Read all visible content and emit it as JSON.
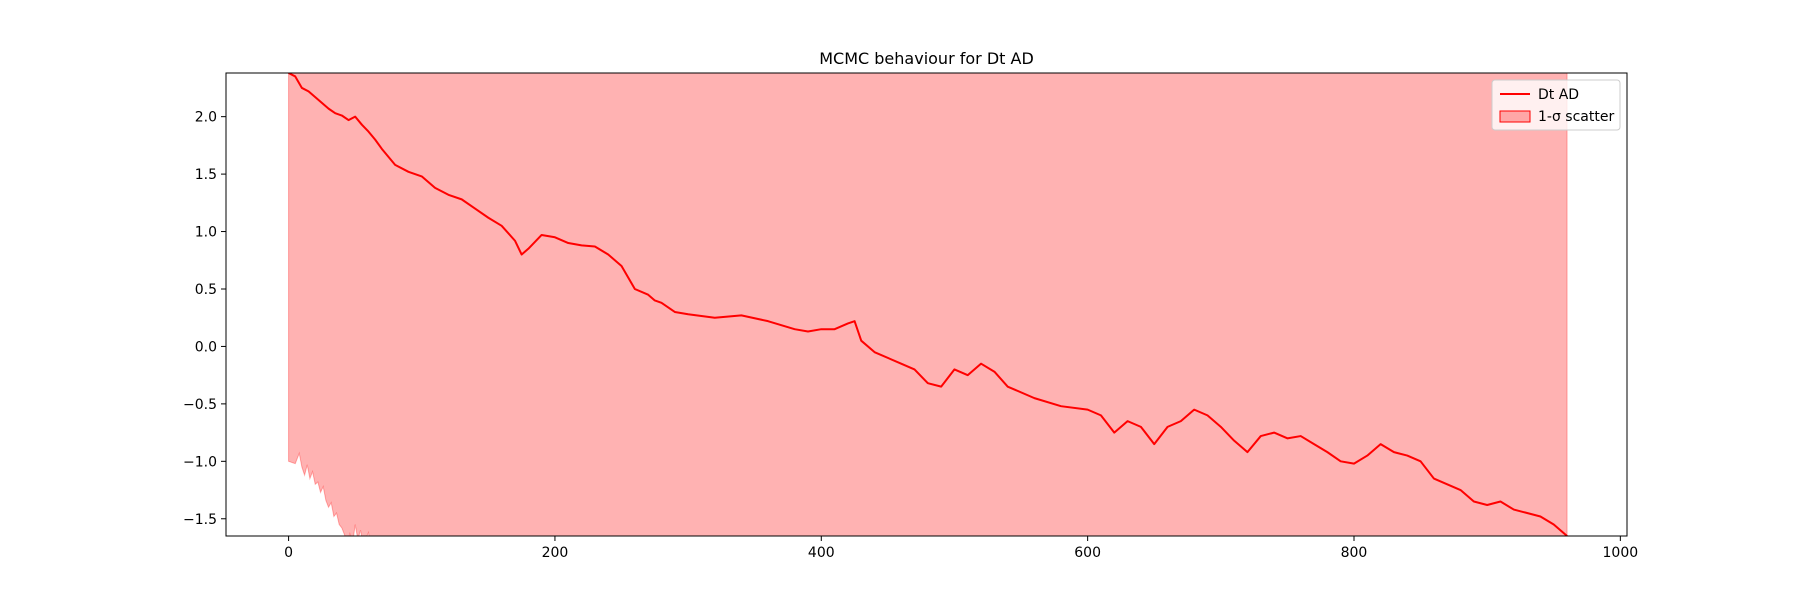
{
  "chart_data": {
    "type": "area",
    "title": "MCMC behaviour for Dt AD",
    "xlabel": "",
    "ylabel": "",
    "xlim": [
      -47,
      1005
    ],
    "ylim": [
      -1.65,
      2.38
    ],
    "x_ticks": [
      0,
      200,
      400,
      600,
      800,
      1000
    ],
    "x_tick_labels": [
      "0",
      "200",
      "400",
      "600",
      "800",
      "1000"
    ],
    "y_ticks": [
      -1.5,
      -1.0,
      -0.5,
      0.0,
      0.5,
      1.0,
      1.5,
      2.0
    ],
    "y_tick_labels": [
      "−1.5",
      "−1.0",
      "−0.5",
      "0.0",
      "0.5",
      "1.0",
      "1.5",
      "2.0"
    ],
    "grid": false,
    "legend_position": "top-right",
    "series": [
      {
        "name": "Dt AD",
        "kind": "line",
        "color": "#ff0000",
        "x": [
          0,
          5,
          10,
          15,
          20,
          25,
          30,
          35,
          40,
          45,
          50,
          55,
          60,
          65,
          70,
          75,
          80,
          90,
          100,
          110,
          120,
          130,
          140,
          150,
          160,
          170,
          175,
          180,
          190,
          200,
          210,
          220,
          230,
          240,
          250,
          255,
          260,
          270,
          275,
          280,
          290,
          300,
          320,
          340,
          360,
          380,
          390,
          400,
          410,
          420,
          425,
          430,
          440,
          460,
          470,
          480,
          490,
          500,
          510,
          520,
          530,
          540,
          560,
          580,
          600,
          610,
          620,
          630,
          640,
          650,
          660,
          670,
          680,
          690,
          700,
          710,
          720,
          730,
          740,
          750,
          760,
          770,
          780,
          790,
          800,
          810,
          820,
          830,
          840,
          850,
          860,
          870,
          880,
          890,
          900,
          910,
          920,
          930,
          940,
          950,
          960
        ],
        "y": [
          2.38,
          2.35,
          2.25,
          2.22,
          2.17,
          2.12,
          2.07,
          2.03,
          2.01,
          1.97,
          2.0,
          1.93,
          1.87,
          1.8,
          1.72,
          1.65,
          1.58,
          1.52,
          1.48,
          1.38,
          1.32,
          1.28,
          1.2,
          1.12,
          1.05,
          0.92,
          0.8,
          0.85,
          0.97,
          0.95,
          0.9,
          0.88,
          0.87,
          0.8,
          0.7,
          0.6,
          0.5,
          0.45,
          0.4,
          0.38,
          0.3,
          0.28,
          0.25,
          0.27,
          0.22,
          0.15,
          0.13,
          0.15,
          0.15,
          0.2,
          0.22,
          0.05,
          -0.05,
          -0.15,
          -0.2,
          -0.32,
          -0.35,
          -0.2,
          -0.25,
          -0.15,
          -0.22,
          -0.35,
          -0.45,
          -0.52,
          -0.55,
          -0.6,
          -0.75,
          -0.65,
          -0.7,
          -0.85,
          -0.7,
          -0.65,
          -0.55,
          -0.6,
          -0.7,
          -0.82,
          -0.92,
          -0.78,
          -0.75,
          -0.8,
          -0.78,
          -0.85,
          -0.92,
          -1.0,
          -1.02,
          -0.95,
          -0.85,
          -0.92,
          -0.95,
          -1.0,
          -1.15,
          -1.2,
          -1.25,
          -1.35,
          -1.38,
          -1.35,
          -1.42,
          -1.45,
          -1.48,
          -1.55,
          -1.65
        ]
      },
      {
        "name": "1-σ scatter",
        "kind": "band",
        "color": "#ff0000",
        "x": [
          0,
          5,
          8,
          10,
          12,
          14,
          16,
          18,
          20,
          22,
          24,
          26,
          28,
          30,
          32,
          34,
          36,
          38,
          40,
          42,
          44,
          46,
          48,
          50,
          52,
          54,
          56,
          58,
          60,
          62,
          960
        ],
        "lower": [
          -1.0,
          -1.02,
          -0.93,
          -1.05,
          -1.12,
          -1.03,
          -1.15,
          -1.09,
          -1.2,
          -1.18,
          -1.27,
          -1.22,
          -1.34,
          -1.4,
          -1.36,
          -1.48,
          -1.45,
          -1.55,
          -1.58,
          -1.64,
          -1.7,
          -1.63,
          -1.72,
          -1.55,
          -1.68,
          -1.6,
          -1.72,
          -1.67,
          -1.62,
          -1.8,
          -2.0
        ],
        "upper_note": "above plotted range"
      }
    ]
  }
}
